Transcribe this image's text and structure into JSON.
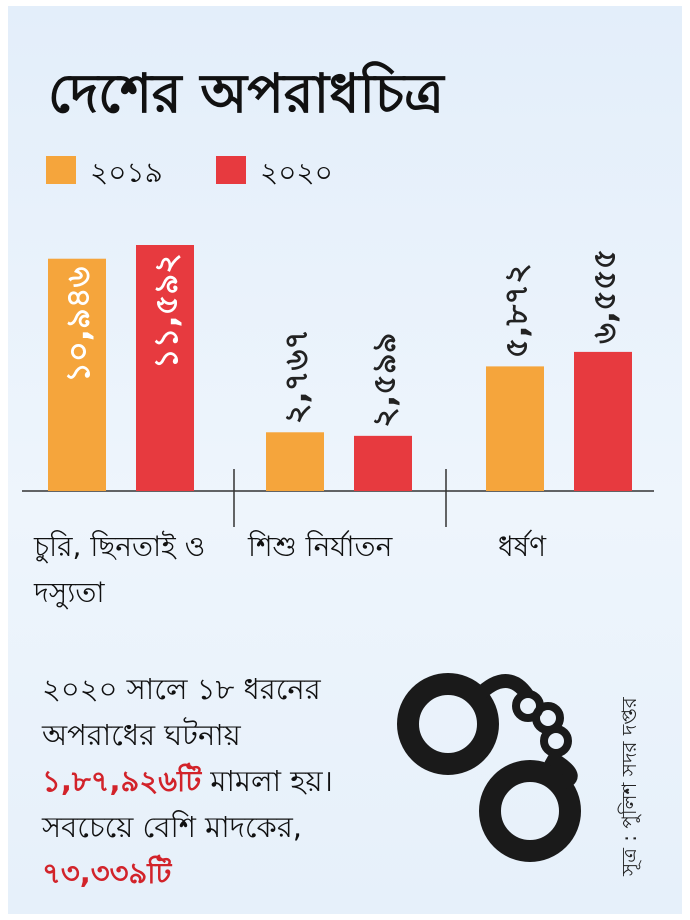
{
  "chart_data": {
    "type": "bar",
    "title": "দেশের অপরাধচিত্র",
    "categories": [
      "চুরি, ছিনতাই ও দস্যুতা",
      "শিশু নির্যাতন",
      "ধর্ষণ"
    ],
    "series": [
      {
        "name": "২০১৯",
        "color": "#f5a53c",
        "values": [
          10946,
          2767,
          5872
        ],
        "value_labels": [
          "১০,৯৪৬",
          "২,৭৬৭",
          "৫,৮৭২"
        ]
      },
      {
        "name": "২০২০",
        "color": "#e73a3f",
        "values": [
          11592,
          2599,
          6555
        ],
        "value_labels": [
          "১১,৫৯২",
          "২,৫৯৯",
          "৬,৫৫৫"
        ]
      }
    ],
    "legend": "top-left",
    "annotation": [
      "২০২০ সালে ১৮ ধরনের অপরাধের ঘটনায় ",
      "১,৮৭,৯২৬টি",
      " মামলা হয়। সবচেয়ে বেশি মাদকের, ",
      "৭৩,৩৩৯টি"
    ],
    "highlight_color": "#d2232a",
    "source": "সূত্র : পুলিশ সদর দপ্তর"
  }
}
